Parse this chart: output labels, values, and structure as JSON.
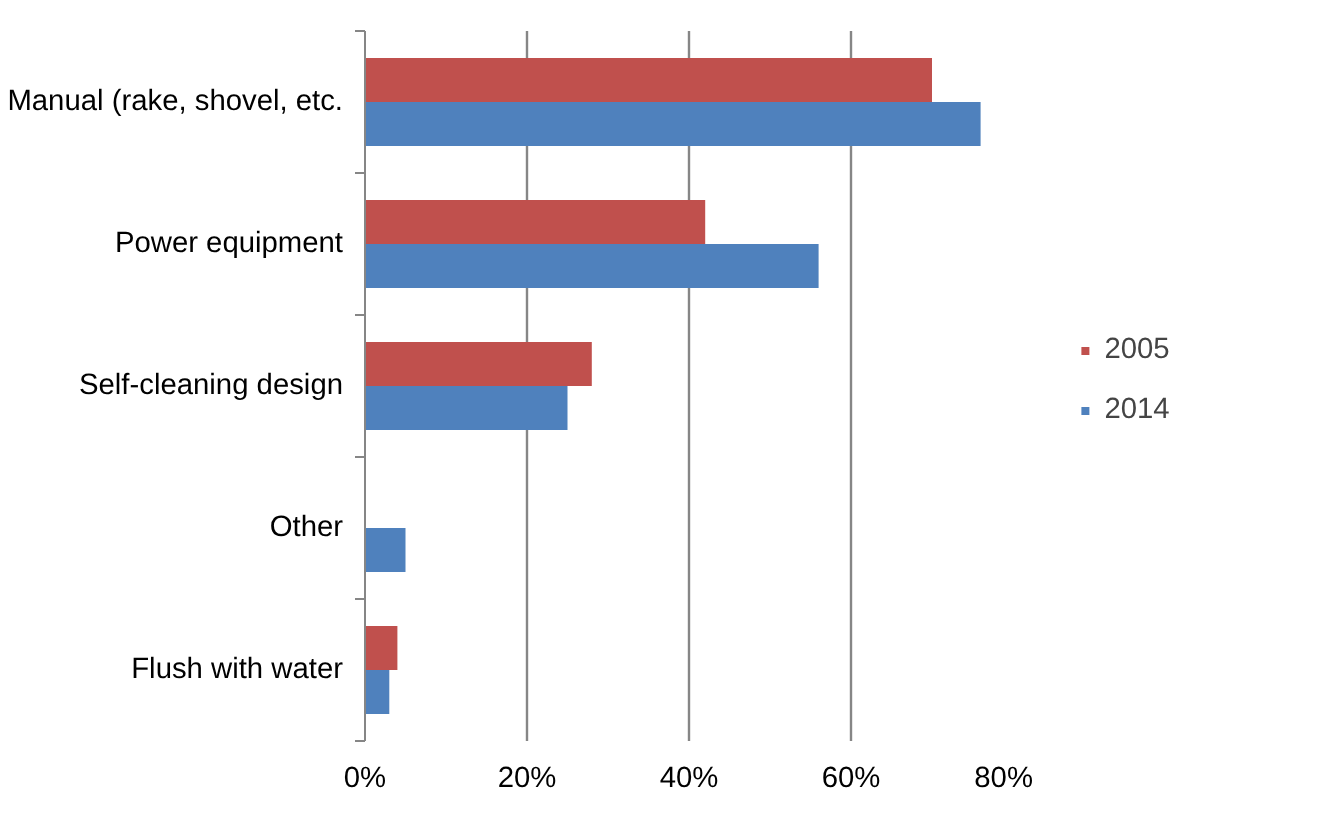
{
  "chart_data": {
    "type": "bar",
    "orientation": "horizontal",
    "categories": [
      "Manual (rake, shovel, etc.",
      "Power equipment",
      "Self-cleaning design",
      "Other",
      "Flush with water"
    ],
    "series": [
      {
        "name": "2005",
        "color": "#c0504d",
        "values": [
          70,
          42,
          28,
          null,
          4
        ]
      },
      {
        "name": "2014",
        "color": "#4f81bd",
        "values": [
          76,
          56,
          25,
          5,
          3
        ]
      }
    ],
    "xlim": [
      0,
      80
    ],
    "xticks": [
      {
        "value": 0,
        "label": "0%"
      },
      {
        "value": 20,
        "label": "20%"
      },
      {
        "value": 40,
        "label": "40%"
      },
      {
        "value": 60,
        "label": "60%"
      },
      {
        "value": 80,
        "label": "80%"
      }
    ],
    "grid": "x",
    "legend": "right"
  }
}
